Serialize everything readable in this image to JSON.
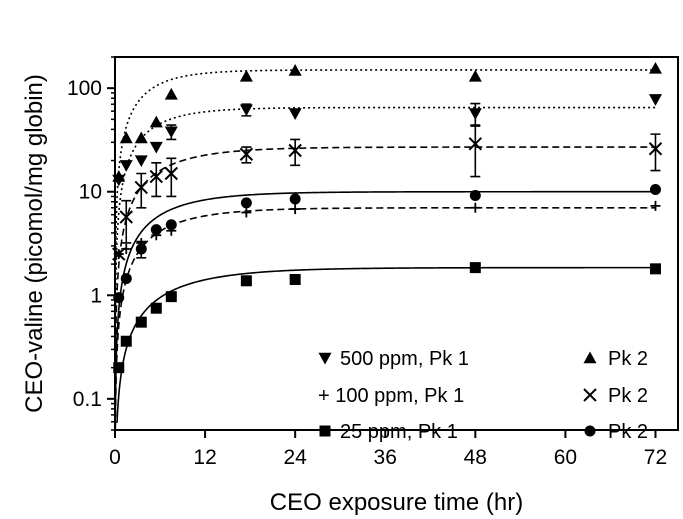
{
  "chart_data": {
    "type": "scatter",
    "title": "",
    "xlabel": "CEO exposure time (hr)",
    "ylabel": "CEO-valine (picomol/mg globin)",
    "xlim": [
      0,
      75
    ],
    "ylim": [
      0.05,
      200
    ],
    "yscale": "log",
    "x_ticks": [
      0,
      12,
      24,
      36,
      48,
      60,
      72
    ],
    "x_tick_labels": [
      "0",
      "12",
      "24",
      "36",
      "48",
      "60",
      "72"
    ],
    "y_ticks": [
      0.1,
      1,
      10,
      100
    ],
    "y_tick_labels": [
      "0.1",
      "1",
      "10",
      "100"
    ],
    "grid": false,
    "legend_position": "bottom-right",
    "legend": [
      {
        "label": "500 ppm, Pk 1",
        "marker": "triangle-down"
      },
      {
        "label": "Pk 2",
        "marker": "triangle-up"
      },
      {
        "label": "+ 100 ppm, Pk 1",
        "marker": "none"
      },
      {
        "label": "Pk 2",
        "marker": "cross"
      },
      {
        "label": "25 ppm, Pk 1",
        "marker": "square"
      },
      {
        "label": "Pk 2",
        "marker": "circle"
      }
    ],
    "series": [
      {
        "name": "500 ppm, Pk 1",
        "marker": "triangle-down",
        "points": [
          [
            0.5,
            13
          ],
          [
            1.5,
            18
          ],
          [
            3.5,
            20
          ],
          [
            5.5,
            27
          ],
          [
            7.5,
            38
          ],
          [
            17.5,
            62
          ],
          [
            24,
            57
          ],
          [
            48,
            57
          ],
          [
            72,
            78
          ]
        ],
        "err": [
          0,
          0,
          0,
          0,
          6,
          8,
          0,
          14,
          0
        ],
        "fit": {
          "style": "dotted",
          "ymax": 65,
          "k": 0.2
        }
      },
      {
        "name": "Pk 2",
        "marker": "triangle-up",
        "points": [
          [
            0.5,
            14
          ],
          [
            1.5,
            33
          ],
          [
            3.5,
            33
          ],
          [
            5.5,
            47
          ],
          [
            7.5,
            87
          ],
          [
            17.5,
            130
          ],
          [
            24,
            148
          ],
          [
            48,
            130
          ],
          [
            72,
            155
          ]
        ],
        "err": [
          0,
          0,
          0,
          0,
          0,
          0,
          0,
          0,
          0
        ],
        "fit": {
          "style": "dotted",
          "ymax": 150,
          "k": 0.22
        }
      },
      {
        "name": "100 ppm, Pk 1",
        "marker": "plus",
        "points": [
          [
            0.5,
            2.5
          ],
          [
            1.5,
            2.8
          ],
          [
            3.5,
            3.2
          ],
          [
            5.5,
            3.8
          ],
          [
            7.5,
            4.2
          ],
          [
            17.5,
            6.3
          ],
          [
            24,
            6.8
          ],
          [
            48,
            7.0
          ],
          [
            72,
            7.3
          ]
        ],
        "err": [
          0,
          0,
          0,
          0,
          0,
          0,
          0,
          0,
          0
        ],
        "fit": {
          "style": "dashed",
          "ymax": 7.0,
          "k": 0.15
        }
      },
      {
        "name": "Pk 2",
        "marker": "cross",
        "points": [
          [
            0.5,
            2.5
          ],
          [
            1.5,
            5.7
          ],
          [
            3.5,
            11
          ],
          [
            5.5,
            14
          ],
          [
            7.5,
            15
          ],
          [
            17.5,
            23
          ],
          [
            24,
            25
          ],
          [
            48,
            29
          ],
          [
            72,
            26
          ]
        ],
        "err": [
          0,
          2.5,
          4,
          5,
          6,
          4,
          7,
          15,
          10
        ],
        "fit": {
          "style": "dashed",
          "ymax": 27,
          "k": 0.15
        }
      },
      {
        "name": "25 ppm, Pk 1",
        "marker": "square",
        "points": [
          [
            0.5,
            0.2
          ],
          [
            1.5,
            0.36
          ],
          [
            3.5,
            0.55
          ],
          [
            5.5,
            0.75
          ],
          [
            7.5,
            0.97
          ],
          [
            17.5,
            1.38
          ],
          [
            24,
            1.42
          ],
          [
            48,
            1.85
          ],
          [
            72,
            1.8
          ]
        ],
        "err": [
          0,
          0,
          0,
          0,
          0,
          0,
          0,
          0,
          0
        ],
        "fit": {
          "style": "solid",
          "ymax": 1.85,
          "k": 0.12
        }
      },
      {
        "name": "Pk 2",
        "marker": "circle",
        "points": [
          [
            0.5,
            0.95
          ],
          [
            1.5,
            1.45
          ],
          [
            3.5,
            2.8
          ],
          [
            5.5,
            4.3
          ],
          [
            7.5,
            4.8
          ],
          [
            17.5,
            7.8
          ],
          [
            24,
            8.5
          ],
          [
            48,
            9.2
          ],
          [
            72,
            10.5
          ]
        ],
        "err": [
          0,
          0,
          0.5,
          0,
          0,
          0,
          0,
          0,
          0
        ],
        "fit": {
          "style": "solid",
          "ymax": 10,
          "k": 0.15
        }
      }
    ]
  }
}
